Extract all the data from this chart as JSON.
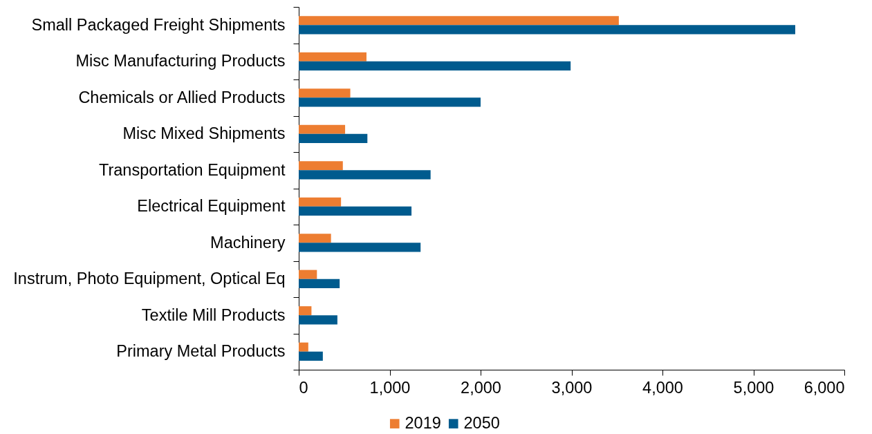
{
  "chart_data": {
    "type": "bar",
    "orientation": "horizontal",
    "categories": [
      "Small Packaged Freight Shipments",
      "Misc Manufacturing Products",
      "Chemicals or Allied Products",
      "Misc Mixed Shipments",
      "Transportation Equipment",
      "Electrical Equipment",
      "Machinery",
      "Instrum, Photo Equipment, Optical Eq",
      "Textile Mill Products",
      "Primary Metal Products"
    ],
    "series": [
      {
        "name": "2019",
        "color": "#ed7d31",
        "values": [
          3520,
          745,
          567,
          510,
          485,
          465,
          355,
          200,
          140,
          105
        ]
      },
      {
        "name": "2050",
        "color": "#005b8e",
        "values": [
          5460,
          2990,
          2000,
          755,
          1450,
          1240,
          1340,
          450,
          425,
          265
        ]
      }
    ],
    "xlim": [
      0,
      6000
    ],
    "xticks": [
      0,
      {
        "value": 1000,
        "label": "1,000"
      },
      {
        "value": 2000,
        "label": "2,000"
      },
      {
        "value": 3000,
        "label": "3,000"
      },
      {
        "value": 4000,
        "label": "4,000"
      },
      {
        "value": 5000,
        "label": "5,000"
      },
      {
        "value": 6000,
        "label": "6,000"
      }
    ],
    "legend": "bottom"
  }
}
